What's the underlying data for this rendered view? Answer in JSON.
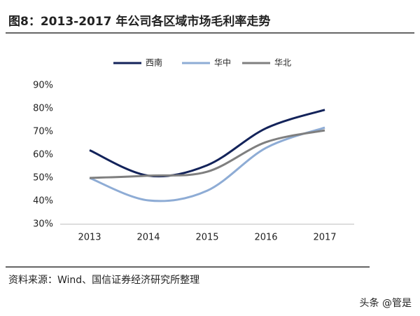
{
  "chart_data": {
    "type": "line",
    "title": "图8：2013-2017 年公司各区域市场毛利率走势",
    "categories": [
      "2013",
      "2014",
      "2015",
      "2016",
      "2017"
    ],
    "series": [
      {
        "name": "西南",
        "color": "#13235a",
        "values": [
          62,
          51,
          55.5,
          71.5,
          79.5
        ]
      },
      {
        "name": "华中",
        "color": "#8eacd5",
        "values": [
          50,
          40.3,
          44.5,
          63,
          71.8
        ]
      },
      {
        "name": "华北",
        "color": "#7f7f7f",
        "values": [
          50,
          51,
          52.7,
          65.5,
          70.6
        ]
      }
    ],
    "ylim": [
      30,
      90
    ],
    "yticks": [
      {
        "value": 30,
        "label": "30%"
      },
      {
        "value": 40,
        "label": "40%"
      },
      {
        "value": 50,
        "label": "50%"
      },
      {
        "value": 60,
        "label": "60%"
      },
      {
        "value": 70,
        "label": "70%"
      },
      {
        "value": 80,
        "label": "80%"
      },
      {
        "value": 90,
        "label": "90%"
      }
    ],
    "grid": false,
    "legend": "top",
    "source": "资料来源：Wind、国信证券经济研究所整理",
    "watermark": "头条 @管是"
  }
}
